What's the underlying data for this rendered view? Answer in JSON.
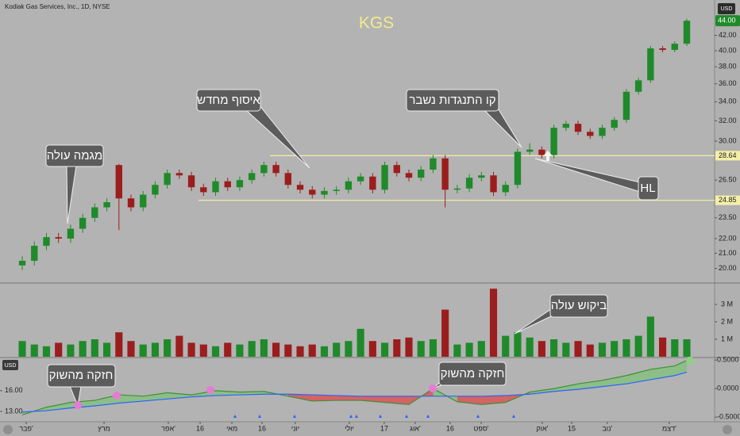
{
  "header": {
    "symbol": "Kodiak Gas Services, Inc., 1D, NYSE",
    "currency": "USD"
  },
  "chart_data": [
    {
      "type": "candlestick",
      "title": "KGS",
      "x": [
        0,
        1,
        2,
        3,
        4,
        5,
        6,
        7,
        8,
        9,
        10,
        11,
        12,
        13,
        14,
        15,
        16,
        17,
        18,
        19,
        20,
        21,
        22,
        23,
        24,
        25,
        26,
        27,
        28,
        29,
        30,
        31,
        32,
        33,
        34,
        35,
        36,
        37,
        38,
        39,
        40,
        41,
        42,
        43,
        44,
        45,
        46,
        47,
        48,
        49,
        50,
        51,
        52,
        53,
        54,
        55
      ],
      "open": [
        20.2,
        20.5,
        21.5,
        22.1,
        22.0,
        22.7,
        23.5,
        24.3,
        27.8,
        25.0,
        24.3,
        25.3,
        26.1,
        27.1,
        26.9,
        25.9,
        25.5,
        26.4,
        25.9,
        26.5,
        27.1,
        27.8,
        27.1,
        26.1,
        25.7,
        25.3,
        25.6,
        25.7,
        26.4,
        26.8,
        25.7,
        27.8,
        27.1,
        26.7,
        27.4,
        28.4,
        25.7,
        25.8,
        26.7,
        26.9,
        25.5,
        26.1,
        29.0,
        29.2,
        28.7,
        31.3,
        31.7,
        30.9,
        30.5,
        31.3,
        32.1,
        35.1,
        36.4,
        40.3,
        40.1,
        40.9
      ],
      "high": [
        20.8,
        21.8,
        22.4,
        22.4,
        23.0,
        23.8,
        24.6,
        25.0,
        27.9,
        25.3,
        25.6,
        26.4,
        27.4,
        27.4,
        27.2,
        26.2,
        26.7,
        26.7,
        26.8,
        27.4,
        28.1,
        28.1,
        27.4,
        26.4,
        26.0,
        25.9,
        26.0,
        26.7,
        27.1,
        27.1,
        28.1,
        28.1,
        27.4,
        27.7,
        28.7,
        28.7,
        26.1,
        27.0,
        27.2,
        27.2,
        26.4,
        29.3,
        29.8,
        29.5,
        31.6,
        32.0,
        32.0,
        31.2,
        31.6,
        32.4,
        35.4,
        36.7,
        40.6,
        40.6,
        41.2,
        44.3
      ],
      "low": [
        19.9,
        20.2,
        21.2,
        21.7,
        21.7,
        22.4,
        23.2,
        24.0,
        22.6,
        24.0,
        24.0,
        25.0,
        25.8,
        26.6,
        25.6,
        25.2,
        25.2,
        25.6,
        25.6,
        26.2,
        26.8,
        26.8,
        25.8,
        25.4,
        25.0,
        25.0,
        25.3,
        25.4,
        26.1,
        25.4,
        25.4,
        26.8,
        26.4,
        26.4,
        27.1,
        24.3,
        25.4,
        25.5,
        26.4,
        25.2,
        25.2,
        25.8,
        28.7,
        28.4,
        28.4,
        31.0,
        30.6,
        30.2,
        30.2,
        31.0,
        31.8,
        34.8,
        36.1,
        39.8,
        39.8,
        40.6
      ],
      "close": [
        20.5,
        21.5,
        22.1,
        22.0,
        22.7,
        23.5,
        24.3,
        24.7,
        25.0,
        24.3,
        25.3,
        26.1,
        27.1,
        26.9,
        25.9,
        25.5,
        26.4,
        25.9,
        26.5,
        27.1,
        27.8,
        27.1,
        26.1,
        25.7,
        25.3,
        25.6,
        25.7,
        26.4,
        26.8,
        25.7,
        27.8,
        27.1,
        26.7,
        27.4,
        28.4,
        25.7,
        25.8,
        26.7,
        26.9,
        25.5,
        26.1,
        29.0,
        29.2,
        28.7,
        31.3,
        31.7,
        30.9,
        30.5,
        31.3,
        32.1,
        35.1,
        36.4,
        40.3,
        40.1,
        40.9,
        44.0
      ],
      "up_color": "#1f8a2a",
      "down_color": "#9c1d1d",
      "xlim": [
        -0.2,
        57.3
      ],
      "ylim": [
        19.1,
        47.0
      ],
      "log_scale": true,
      "yticks": [
        {
          "value": 20,
          "label": "20.00"
        },
        {
          "value": 21,
          "label": "21.00"
        },
        {
          "value": 22,
          "label": "22.00"
        },
        {
          "value": 23.5,
          "label": "23.50"
        },
        {
          "value": 26.5,
          "label": "26.50"
        },
        {
          "value": 30,
          "label": "30.00"
        },
        {
          "value": 32,
          "label": "32.00"
        },
        {
          "value": 34,
          "label": "34.00"
        },
        {
          "value": 36,
          "label": "36.00"
        },
        {
          "value": 38,
          "label": "38.00"
        },
        {
          "value": 40,
          "label": "40.00"
        },
        {
          "value": 42,
          "label": "42.00"
        }
      ],
      "levels": [
        {
          "value": 28.64,
          "label": "28.64"
        },
        {
          "value": 24.85,
          "label": "24.85"
        }
      ],
      "last_value": {
        "value": 44.0,
        "label": "44.00"
      },
      "annotations": [
        "מגמה עולה",
        "איסוף מחדש",
        "קו התנגדות נשבר",
        "HL"
      ]
    },
    {
      "type": "bar",
      "values": [
        900000,
        700000,
        600000,
        800000,
        700000,
        900000,
        1000000,
        800000,
        1400000,
        900000,
        700000,
        800000,
        1000000,
        1200000,
        800000,
        700000,
        600000,
        800000,
        700000,
        900000,
        1000000,
        800000,
        700000,
        600000,
        700000,
        600000,
        800000,
        900000,
        1600000,
        900000,
        800000,
        1000000,
        1100000,
        900000,
        1000000,
        2700000,
        700000,
        800000,
        900000,
        3900000,
        1200000,
        1400000,
        1100000,
        900000,
        1000000,
        800000,
        900000,
        700000,
        800000,
        900000,
        1000000,
        1200000,
        2300000,
        1100000,
        1000000,
        1000000
      ],
      "ylim": [
        0,
        4090000
      ],
      "yticks": [
        {
          "value": 1000000,
          "label": "1 M"
        },
        {
          "value": 2000000,
          "label": "2 M"
        },
        {
          "value": 3000000,
          "label": "3 M"
        }
      ],
      "annotations": [
        "ביקוש עולה"
      ]
    },
    {
      "type": "line",
      "x": [
        0,
        2,
        4,
        6,
        8,
        10,
        12,
        14,
        16,
        18,
        20,
        22,
        24,
        26,
        28,
        30,
        32,
        34,
        36,
        38,
        40,
        42,
        44,
        46,
        48,
        50,
        52,
        54,
        55
      ],
      "series": [
        {
          "color": "#3f8f35",
          "values": [
            12.5,
            13.6,
            14.3,
            14.6,
            15.4,
            15.2,
            15.7,
            15.4,
            16.0,
            15.8,
            15.9,
            15.2,
            14.5,
            14.6,
            14.6,
            14.3,
            14.0,
            16.3,
            14.4,
            14.0,
            14.3,
            15.8,
            16.3,
            17.0,
            17.5,
            18.2,
            19.1,
            19.6,
            20.4
          ]
        },
        {
          "color": "#2962ff",
          "values": [
            12.9,
            13.1,
            13.5,
            13.8,
            14.2,
            14.5,
            14.8,
            15.1,
            15.3,
            15.4,
            15.5,
            15.5,
            15.4,
            15.3,
            15.2,
            15.2,
            15.2,
            15.2,
            15.2,
            15.2,
            15.3,
            15.5,
            15.9,
            16.2,
            16.6,
            17.0,
            17.6,
            18.2,
            18.7
          ]
        }
      ],
      "fill_up_color": "#7fc27a",
      "fill_down_color": "#e04848",
      "xlim": [
        -0.2,
        57.3
      ],
      "ylim": [
        11.5,
        20.7
      ],
      "yticks": [
        {
          "value": 16,
          "label": "16.00"
        },
        {
          "value": 13,
          "label": "13.00"
        }
      ],
      "y2lim": [
        -0.58,
        0.53
      ],
      "y2ticks": [
        {
          "value": 0.5,
          "label": "0.5000"
        },
        {
          "value": 0,
          "label": "0.0000"
        },
        {
          "value": -0.5,
          "label": "-0.5000"
        }
      ],
      "xticks": [
        {
          "value": 0.33,
          "label": "פבר'"
        },
        {
          "value": 6.77,
          "label": "מרץ"
        },
        {
          "value": 12.09,
          "label": "אפר'"
        },
        {
          "value": 14.72,
          "label": "16"
        },
        {
          "value": 17.35,
          "label": "מאי"
        },
        {
          "value": 19.84,
          "label": "16"
        },
        {
          "value": 22.6,
          "label": "יוני"
        },
        {
          "value": 27.07,
          "label": "יולי"
        },
        {
          "value": 29.96,
          "label": "17"
        },
        {
          "value": 32.52,
          "label": "אוג'"
        },
        {
          "value": 35.41,
          "label": "16"
        },
        {
          "value": 37.98,
          "label": "ספט'"
        },
        {
          "value": 43.03,
          "label": "אוק'"
        },
        {
          "value": 45.47,
          "label": "15"
        },
        {
          "value": 48.42,
          "label": "נוב'"
        },
        {
          "value": 53.55,
          "label": "דצמ'"
        }
      ],
      "annotations": [
        "חזקה מהשוק",
        "חזקה מהשוק"
      ]
    }
  ]
}
